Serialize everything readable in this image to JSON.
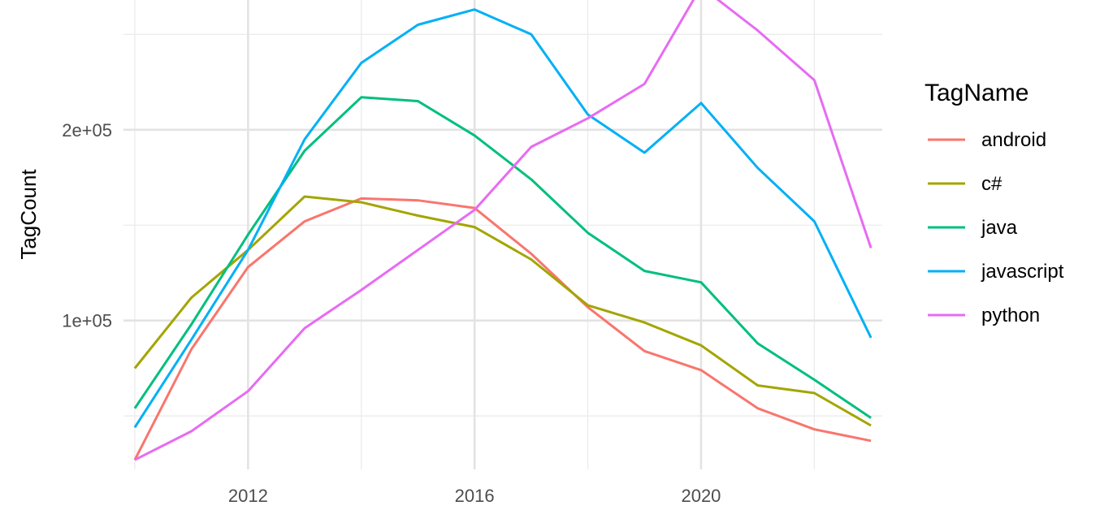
{
  "chart_data": {
    "type": "line",
    "title": "",
    "xlabel": "",
    "ylabel": "TagCount",
    "x": [
      2010,
      2011,
      2012,
      2013,
      2014,
      2015,
      2016,
      2017,
      2018,
      2019,
      2020,
      2021,
      2022,
      2023
    ],
    "xlim": [
      2009.8,
      2023.2
    ],
    "ylim": [
      22000,
      268000
    ],
    "x_ticks": [
      2012,
      2016,
      2020
    ],
    "x_tick_labels": [
      "2012",
      "2016",
      "2020"
    ],
    "x_minor_grid": [
      2010,
      2014,
      2018,
      2022
    ],
    "y_ticks": [
      100000,
      200000
    ],
    "y_tick_labels": [
      "1e+05",
      "2e+05"
    ],
    "y_minor_grid": [
      50000,
      150000,
      250000
    ],
    "grid": true,
    "legend": {
      "title": "TagName",
      "position": "right"
    },
    "series": [
      {
        "name": "android",
        "color": "#F8766D",
        "values": [
          27000,
          85000,
          128000,
          152000,
          164000,
          163000,
          159000,
          135000,
          107000,
          84000,
          74000,
          54000,
          43000,
          37000
        ]
      },
      {
        "name": "c#",
        "color": "#A3A500",
        "values": [
          75000,
          112000,
          137000,
          165000,
          162000,
          155000,
          149000,
          132000,
          108000,
          99000,
          87000,
          66000,
          62000,
          45000
        ]
      },
      {
        "name": "java",
        "color": "#00BF7D",
        "values": [
          54000,
          98000,
          145000,
          189000,
          217000,
          215000,
          197000,
          174000,
          146000,
          126000,
          120000,
          88000,
          69000,
          49000
        ]
      },
      {
        "name": "javascript",
        "color": "#00B0F6",
        "values": [
          44000,
          90000,
          137000,
          195000,
          235000,
          255000,
          263000,
          250000,
          208000,
          188000,
          214000,
          180000,
          152000,
          91000
        ]
      },
      {
        "name": "python",
        "color": "#E76BF3",
        "values": [
          27000,
          42000,
          63000,
          96000,
          116000,
          137000,
          158000,
          191000,
          206000,
          224000,
          275000,
          252000,
          226000,
          138000
        ]
      }
    ]
  }
}
